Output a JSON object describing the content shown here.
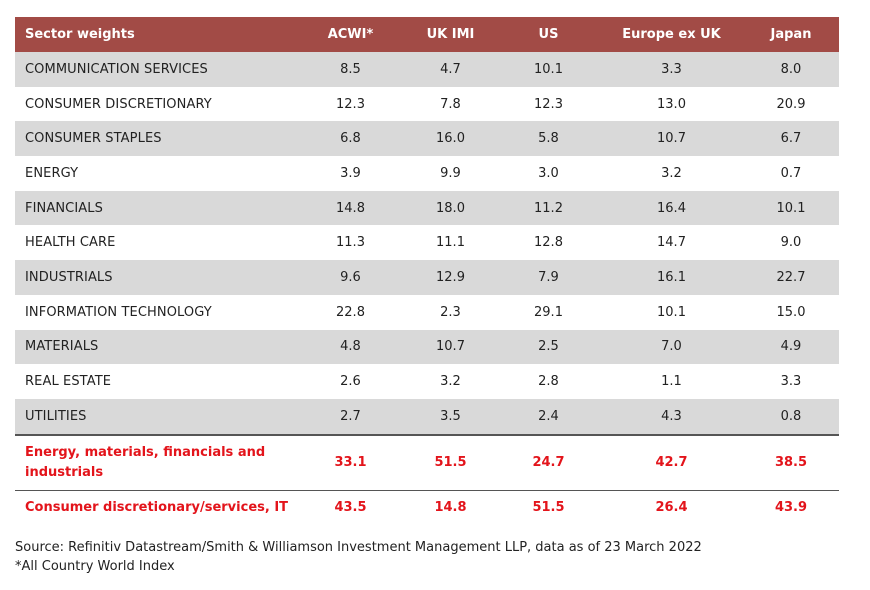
{
  "header": [
    "Sector weights",
    "ACWI*",
    "UK IMI",
    "US",
    "Europe ex UK",
    "Japan"
  ],
  "rows": [
    {
      "label": "COMMUNICATION SERVICES",
      "values": [
        "8.5",
        "4.7",
        "10.1",
        "3.3",
        "8.0"
      ]
    },
    {
      "label": "CONSUMER DISCRETIONARY",
      "values": [
        "12.3",
        "7.8",
        "12.3",
        "13.0",
        "20.9"
      ]
    },
    {
      "label": "CONSUMER STAPLES",
      "values": [
        "6.8",
        "16.0",
        "5.8",
        "10.7",
        "6.7"
      ]
    },
    {
      "label": "ENERGY",
      "values": [
        "3.9",
        "9.9",
        "3.0",
        "3.2",
        "0.7"
      ]
    },
    {
      "label": "FINANCIALS",
      "values": [
        "14.8",
        "18.0",
        "11.2",
        "16.4",
        "10.1"
      ]
    },
    {
      "label": "HEALTH CARE",
      "values": [
        "11.3",
        "11.1",
        "12.8",
        "14.7",
        "9.0"
      ]
    },
    {
      "label": "INDUSTRIALS",
      "values": [
        "9.6",
        "12.9",
        "7.9",
        "16.1",
        "22.7"
      ]
    },
    {
      "label": "INFORMATION TECHNOLOGY",
      "values": [
        "22.8",
        "2.3",
        "29.1",
        "10.1",
        "15.0"
      ]
    },
    {
      "label": "MATERIALS",
      "values": [
        "4.8",
        "10.7",
        "2.5",
        "7.0",
        "4.9"
      ]
    },
    {
      "label": "REAL ESTATE",
      "values": [
        "2.6",
        "3.2",
        "2.8",
        "1.1",
        "3.3"
      ]
    },
    {
      "label": "UTILITIES",
      "values": [
        "2.7",
        "3.5",
        "2.4",
        "4.3",
        "0.8"
      ]
    }
  ],
  "summary": [
    {
      "label": "Energy, materials, financials and industrials",
      "values": [
        "33.1",
        "51.5",
        "24.7",
        "42.7",
        "38.5"
      ]
    },
    {
      "label": "Consumer discretionary/services, IT",
      "values": [
        "43.5",
        "14.8",
        "51.5",
        "26.4",
        "43.9"
      ]
    }
  ],
  "source": "Source: Refinitiv Datastream/Smith & Williamson Investment Management LLP, data as of 23 March 2022",
  "footnote": "*All Country World Index",
  "colors": {
    "header_bg": "#a24b46",
    "summary_text": "#e3141b",
    "stripe": "#d9d9d9"
  }
}
